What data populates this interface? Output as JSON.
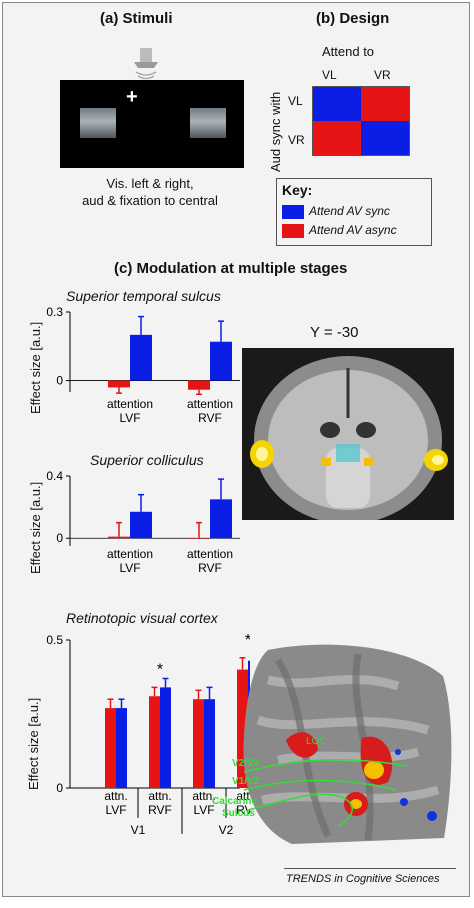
{
  "panel_a": {
    "title": "(a) Stimuli",
    "caption_line1": "Vis. left & right,",
    "caption_line2": "aud & fixation to central"
  },
  "panel_b": {
    "title": "(b) Design",
    "attend_to": "Attend to",
    "col_labels": [
      "VL",
      "VR"
    ],
    "row_axis": "Aud sync with",
    "row_labels": [
      "VL",
      "VR"
    ]
  },
  "key": {
    "title": "Key:",
    "items": [
      {
        "label": "Attend AV sync",
        "color": "#0a1ee6"
      },
      {
        "label": "Attend AV async",
        "color": "#e61414"
      }
    ]
  },
  "panel_c": {
    "title": "(c) Modulation at multiple stages",
    "y_label": "Effect size [a.u.]",
    "coronal_label": "Y = -30"
  },
  "flatmap_labels": {
    "loc": "LOC",
    "v2v3": "V2/V3",
    "v1v2": "V1/V2",
    "calcarine1": "Calcarine",
    "calcarine2": "Sulcus"
  },
  "footer": "TRENDS in Cognitive Sciences",
  "chart_data": [
    {
      "type": "bar",
      "title": "Superior temporal sulcus",
      "ylabel": "Effect size [a.u.]",
      "ylim": [
        -0.05,
        0.3
      ],
      "yticks": [
        "0.3",
        "0"
      ],
      "group_labels": [
        [
          "attention",
          "LVF"
        ],
        [
          "attention",
          "RVF"
        ]
      ],
      "series": [
        {
          "values": [
            -0.03,
            -0.04
          ],
          "errors": [
            0.025,
            0.02
          ],
          "color": "#e61414"
        },
        {
          "values": [
            0.2,
            0.17
          ],
          "errors": [
            0.08,
            0.09
          ],
          "color": "#0a1ee6"
        }
      ]
    },
    {
      "type": "bar",
      "title": "Superior colliculus",
      "ylabel": "Effect size [a.u.]",
      "ylim": [
        -0.05,
        0.4
      ],
      "yticks": [
        "0.4",
        "0"
      ],
      "group_labels": [
        [
          "attention",
          "LVF"
        ],
        [
          "attention",
          "RVF"
        ]
      ],
      "series": [
        {
          "values": [
            0.01,
            0.0
          ],
          "errors": [
            0.09,
            0.1
          ],
          "color": "#e61414"
        },
        {
          "values": [
            0.17,
            0.25
          ],
          "errors": [
            0.11,
            0.13
          ],
          "color": "#0a1ee6"
        }
      ]
    },
    {
      "type": "bar",
      "title": "Retinotopic visual cortex",
      "ylabel": "Effect size [a.u.]",
      "ylim": [
        0,
        0.5
      ],
      "yticks": [
        "0.5",
        "0"
      ],
      "group_labels": [
        [
          "attn.",
          "LVF"
        ],
        [
          "attn.",
          "RVF"
        ],
        [
          "attn.",
          "LVF"
        ],
        [
          "attn.",
          "RVF"
        ]
      ],
      "area_labels": [
        "V1",
        "V2"
      ],
      "significance": [
        false,
        true,
        false,
        true
      ],
      "sig_marker": "*",
      "series": [
        {
          "values": [
            0.27,
            0.31,
            0.3,
            0.4
          ],
          "errors": [
            0.03,
            0.03,
            0.03,
            0.04
          ],
          "color": "#e61414"
        },
        {
          "values": [
            0.27,
            0.34,
            0.3,
            0.43
          ],
          "errors": [
            0.03,
            0.03,
            0.04,
            0.04
          ],
          "color": "#0a1ee6"
        }
      ]
    }
  ]
}
